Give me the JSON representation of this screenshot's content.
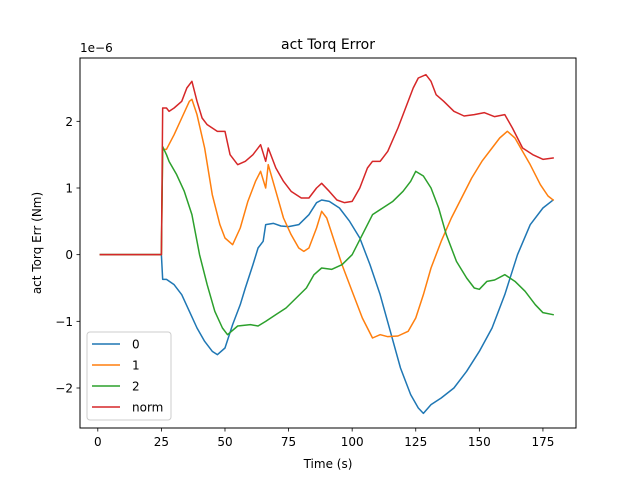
{
  "chart_data": {
    "type": "line",
    "title": "act Torq Error",
    "xlabel": "Time (s)",
    "ylabel": "act Torq Err (Nm)",
    "y_offset_label": "1e−6",
    "y_scale": 1e-06,
    "xlim": [
      -7,
      188
    ],
    "ylim": [
      -2.6,
      2.95
    ],
    "x_ticks": [
      0,
      25,
      50,
      75,
      100,
      125,
      150,
      175
    ],
    "x_tick_labels": [
      "0",
      "25",
      "50",
      "75",
      "100",
      "125",
      "150",
      "175"
    ],
    "y_ticks": [
      -2,
      -1,
      0,
      1,
      2
    ],
    "y_tick_labels": [
      "−2",
      "−1",
      "0",
      "1",
      "2"
    ],
    "grid": false,
    "legend_position": "lower-left",
    "series": [
      {
        "name": "0",
        "color": "#1f77b4",
        "points": [
          [
            1,
            0
          ],
          [
            25,
            0
          ],
          [
            25.5,
            -0.37
          ],
          [
            27,
            -0.37
          ],
          [
            30,
            -0.45
          ],
          [
            33,
            -0.6
          ],
          [
            36,
            -0.85
          ],
          [
            39,
            -1.1
          ],
          [
            42,
            -1.3
          ],
          [
            45,
            -1.45
          ],
          [
            47,
            -1.5
          ],
          [
            50,
            -1.4
          ],
          [
            53,
            -1.05
          ],
          [
            56,
            -0.75
          ],
          [
            58,
            -0.5
          ],
          [
            61,
            -0.15
          ],
          [
            63,
            0.1
          ],
          [
            65,
            0.2
          ],
          [
            66,
            0.45
          ],
          [
            69,
            0.47
          ],
          [
            72,
            0.43
          ],
          [
            75,
            0.42
          ],
          [
            79,
            0.45
          ],
          [
            83,
            0.6
          ],
          [
            86,
            0.78
          ],
          [
            88,
            0.82
          ],
          [
            91,
            0.8
          ],
          [
            95,
            0.7
          ],
          [
            99,
            0.5
          ],
          [
            103,
            0.25
          ],
          [
            107,
            -0.15
          ],
          [
            111,
            -0.6
          ],
          [
            115,
            -1.15
          ],
          [
            119,
            -1.7
          ],
          [
            123,
            -2.1
          ],
          [
            126,
            -2.3
          ],
          [
            128,
            -2.38
          ],
          [
            131,
            -2.25
          ],
          [
            135,
            -2.15
          ],
          [
            140,
            -2.0
          ],
          [
            145,
            -1.75
          ],
          [
            150,
            -1.45
          ],
          [
            155,
            -1.1
          ],
          [
            160,
            -0.6
          ],
          [
            165,
            0.0
          ],
          [
            170,
            0.45
          ],
          [
            175,
            0.7
          ],
          [
            179,
            0.82
          ]
        ]
      },
      {
        "name": "1",
        "color": "#ff7f0e",
        "points": [
          [
            1,
            0
          ],
          [
            25,
            0
          ],
          [
            25.5,
            1.58
          ],
          [
            27,
            1.58
          ],
          [
            30,
            1.8
          ],
          [
            33,
            2.05
          ],
          [
            36,
            2.3
          ],
          [
            37,
            2.33
          ],
          [
            39,
            2.1
          ],
          [
            42,
            1.6
          ],
          [
            45,
            0.9
          ],
          [
            48,
            0.45
          ],
          [
            50,
            0.25
          ],
          [
            53,
            0.15
          ],
          [
            56,
            0.4
          ],
          [
            59,
            0.8
          ],
          [
            62,
            1.1
          ],
          [
            64,
            1.25
          ],
          [
            66,
            1.0
          ],
          [
            67,
            1.35
          ],
          [
            70,
            0.95
          ],
          [
            73,
            0.55
          ],
          [
            76,
            0.3
          ],
          [
            79,
            0.1
          ],
          [
            81,
            0.05
          ],
          [
            83,
            0.1
          ],
          [
            86,
            0.4
          ],
          [
            88,
            0.65
          ],
          [
            90,
            0.55
          ],
          [
            93,
            0.2
          ],
          [
            96,
            -0.15
          ],
          [
            100,
            -0.55
          ],
          [
            104,
            -0.95
          ],
          [
            108,
            -1.25
          ],
          [
            111,
            -1.2
          ],
          [
            114,
            -1.23
          ],
          [
            118,
            -1.22
          ],
          [
            122,
            -1.15
          ],
          [
            125,
            -0.95
          ],
          [
            128,
            -0.6
          ],
          [
            131,
            -0.2
          ],
          [
            135,
            0.2
          ],
          [
            139,
            0.55
          ],
          [
            143,
            0.85
          ],
          [
            147,
            1.15
          ],
          [
            151,
            1.4
          ],
          [
            155,
            1.6
          ],
          [
            158,
            1.75
          ],
          [
            161,
            1.85
          ],
          [
            164,
            1.75
          ],
          [
            167,
            1.55
          ],
          [
            170,
            1.35
          ],
          [
            174,
            1.05
          ],
          [
            177,
            0.88
          ],
          [
            179,
            0.82
          ]
        ]
      },
      {
        "name": "2",
        "color": "#2ca02c",
        "points": [
          [
            1,
            0
          ],
          [
            25,
            0
          ],
          [
            25.5,
            1.62
          ],
          [
            27,
            1.5
          ],
          [
            28,
            1.4
          ],
          [
            31,
            1.2
          ],
          [
            34,
            0.95
          ],
          [
            37,
            0.6
          ],
          [
            40,
            0.0
          ],
          [
            43,
            -0.45
          ],
          [
            46,
            -0.85
          ],
          [
            49,
            -1.1
          ],
          [
            51,
            -1.2
          ],
          [
            55,
            -1.07
          ],
          [
            60,
            -1.05
          ],
          [
            63,
            -1.07
          ],
          [
            66,
            -1.0
          ],
          [
            70,
            -0.9
          ],
          [
            74,
            -0.8
          ],
          [
            78,
            -0.65
          ],
          [
            82,
            -0.5
          ],
          [
            85,
            -0.3
          ],
          [
            88,
            -0.2
          ],
          [
            92,
            -0.22
          ],
          [
            96,
            -0.15
          ],
          [
            100,
            0.0
          ],
          [
            104,
            0.3
          ],
          [
            108,
            0.6
          ],
          [
            112,
            0.7
          ],
          [
            116,
            0.8
          ],
          [
            120,
            0.95
          ],
          [
            123,
            1.1
          ],
          [
            125,
            1.25
          ],
          [
            128,
            1.18
          ],
          [
            131,
            1.0
          ],
          [
            134,
            0.7
          ],
          [
            137,
            0.3
          ],
          [
            141,
            -0.1
          ],
          [
            145,
            -0.35
          ],
          [
            148,
            -0.5
          ],
          [
            150,
            -0.52
          ],
          [
            153,
            -0.4
          ],
          [
            156,
            -0.38
          ],
          [
            160,
            -0.3
          ],
          [
            164,
            -0.4
          ],
          [
            168,
            -0.55
          ],
          [
            172,
            -0.75
          ],
          [
            175,
            -0.87
          ],
          [
            179,
            -0.9
          ]
        ]
      },
      {
        "name": "norm",
        "color": "#d62728",
        "points": [
          [
            1,
            0
          ],
          [
            25,
            0
          ],
          [
            25.5,
            2.2
          ],
          [
            27,
            2.2
          ],
          [
            28,
            2.15
          ],
          [
            30,
            2.2
          ],
          [
            33,
            2.3
          ],
          [
            35,
            2.5
          ],
          [
            37,
            2.6
          ],
          [
            39,
            2.3
          ],
          [
            41,
            2.05
          ],
          [
            43,
            1.95
          ],
          [
            45,
            1.9
          ],
          [
            47,
            1.85
          ],
          [
            50,
            1.85
          ],
          [
            52,
            1.5
          ],
          [
            55,
            1.35
          ],
          [
            58,
            1.4
          ],
          [
            61,
            1.5
          ],
          [
            64,
            1.65
          ],
          [
            66,
            1.4
          ],
          [
            67,
            1.6
          ],
          [
            70,
            1.3
          ],
          [
            73,
            1.1
          ],
          [
            76,
            0.95
          ],
          [
            80,
            0.85
          ],
          [
            83,
            0.85
          ],
          [
            86,
            1.0
          ],
          [
            88,
            1.07
          ],
          [
            91,
            0.95
          ],
          [
            94,
            0.82
          ],
          [
            97,
            0.78
          ],
          [
            100,
            0.8
          ],
          [
            103,
            1.0
          ],
          [
            106,
            1.3
          ],
          [
            108,
            1.4
          ],
          [
            111,
            1.4
          ],
          [
            114,
            1.55
          ],
          [
            118,
            1.9
          ],
          [
            121,
            2.2
          ],
          [
            124,
            2.5
          ],
          [
            126,
            2.65
          ],
          [
            129,
            2.7
          ],
          [
            131,
            2.6
          ],
          [
            133,
            2.4
          ],
          [
            136,
            2.3
          ],
          [
            140,
            2.15
          ],
          [
            144,
            2.08
          ],
          [
            148,
            2.1
          ],
          [
            152,
            2.13
          ],
          [
            156,
            2.07
          ],
          [
            160,
            2.1
          ],
          [
            163,
            1.9
          ],
          [
            167,
            1.6
          ],
          [
            171,
            1.5
          ],
          [
            175,
            1.43
          ],
          [
            179,
            1.45
          ]
        ]
      }
    ]
  }
}
